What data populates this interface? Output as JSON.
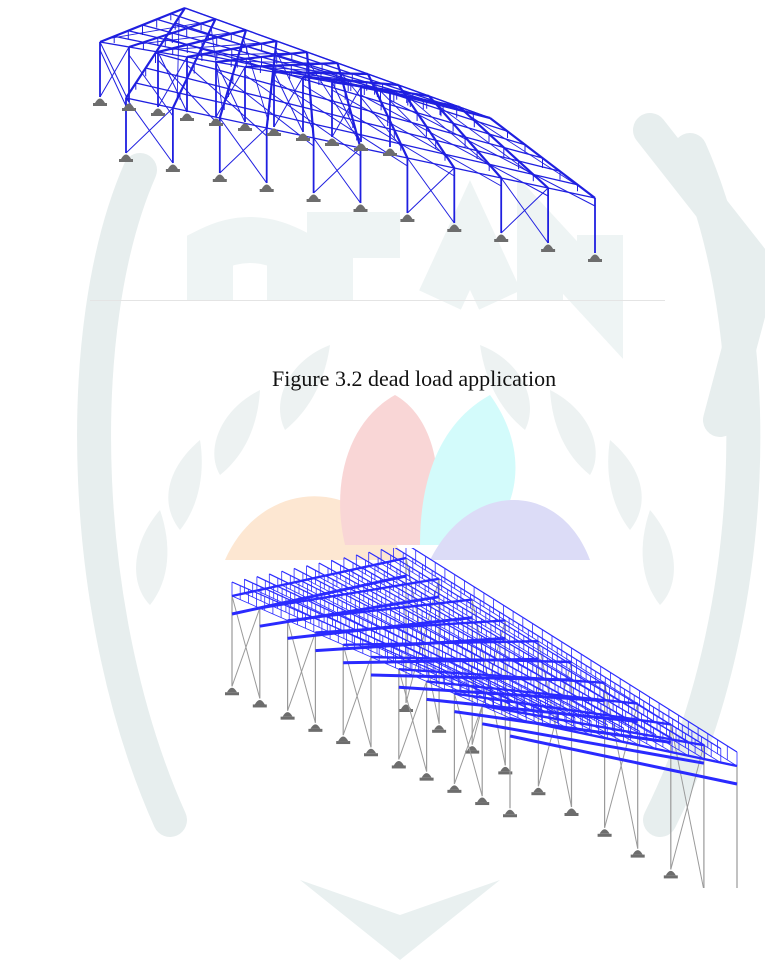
{
  "captions": {
    "figure_3_2": "Figure 3.2 dead load application"
  },
  "colors": {
    "frame_blue": "#1f1fe0",
    "load_blue": "#2a2aff",
    "column_grey": "#9a9a9a",
    "support_grey": "#6d6d6d",
    "watermark_grey": "#e7eeee",
    "watermark_pink": "#f9d6d6",
    "watermark_cyan": "#d3fbfb",
    "watermark_peach": "#fde7d2",
    "watermark_lavender": "#dcdcf7"
  },
  "icons": {
    "support": "pinned-support-icon"
  }
}
